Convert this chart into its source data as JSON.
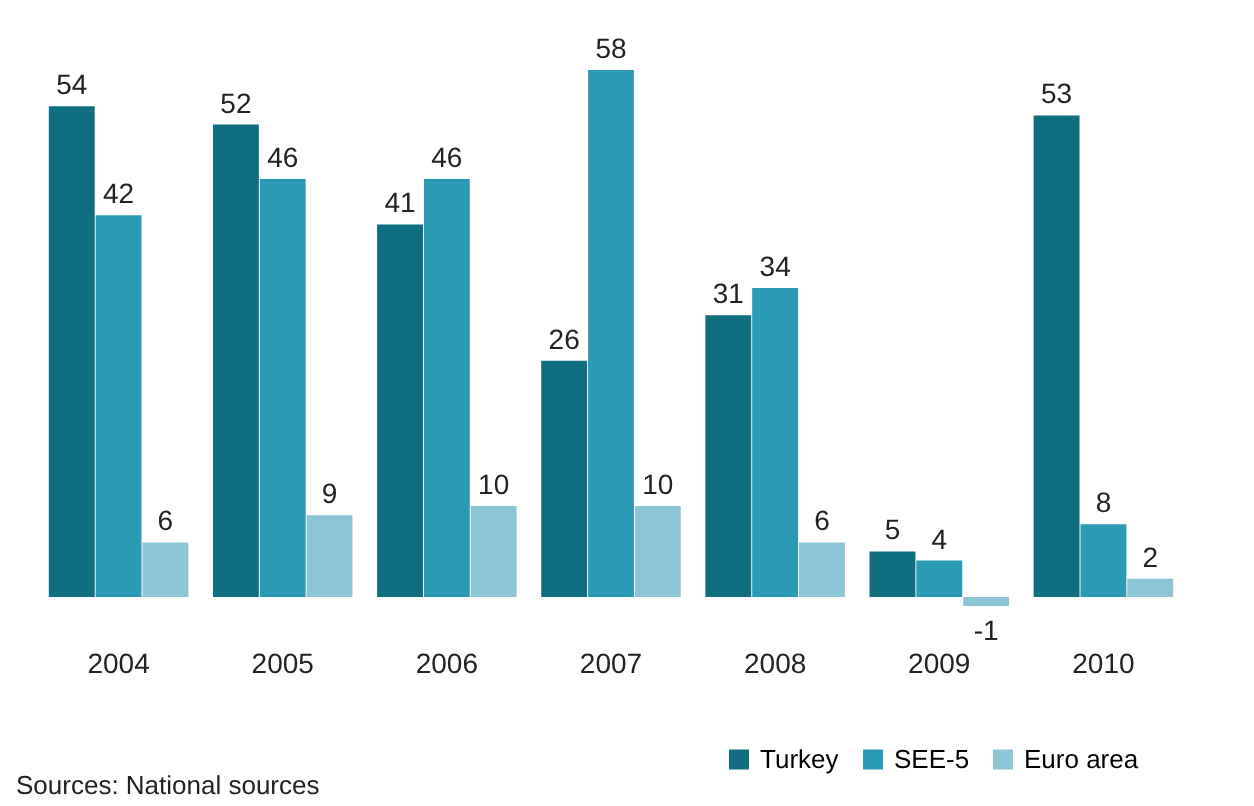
{
  "chart_data": {
    "type": "bar",
    "categories": [
      "2004",
      "2005",
      "2006",
      "2007",
      "2008",
      "2009",
      "2010"
    ],
    "series": [
      {
        "name": "Turkey",
        "color": "#0f6e80",
        "values": [
          54,
          52,
          41,
          26,
          31,
          5,
          53
        ]
      },
      {
        "name": "SEE-5",
        "color": "#2b9bb5",
        "values": [
          42,
          46,
          46,
          58,
          34,
          4,
          8
        ]
      },
      {
        "name": "Euro area",
        "color": "#8cc5d5",
        "values": [
          6,
          9,
          10,
          10,
          6,
          -1,
          2
        ]
      }
    ],
    "data_labels": true,
    "legend": "bottom right",
    "grid": false,
    "annotations": [
      "Sources: National sources"
    ]
  }
}
